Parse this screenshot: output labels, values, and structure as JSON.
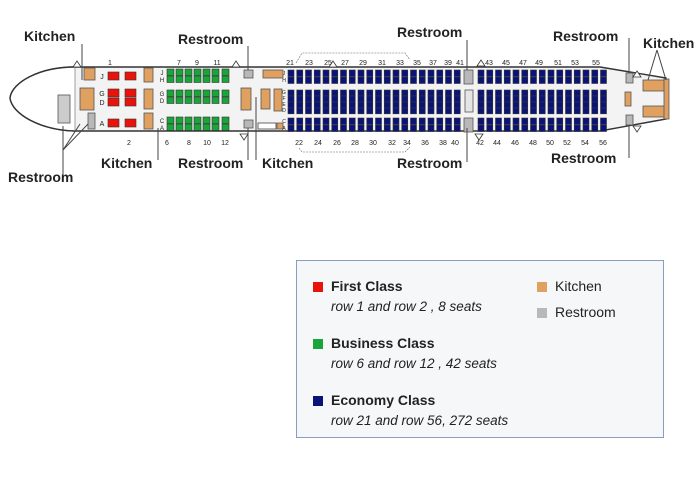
{
  "colors": {
    "first": "#e8140c",
    "business": "#1aa53a",
    "economy": "#0a1478",
    "kitchen": "#e0a060",
    "restroom": "#b8b8b8"
  },
  "callouts": {
    "top": [
      "Kitchen",
      "Restroom",
      "Restroom",
      "Restroom",
      "Kitchen"
    ],
    "bottom": [
      "Restroom",
      "Kitchen",
      "Restroom",
      "Kitchen",
      "Restroom",
      "Restroom"
    ]
  },
  "row_numbers": {
    "top": [
      "1",
      "7",
      "9",
      "11",
      "21",
      "23",
      "25",
      "27",
      "29",
      "31",
      "33",
      "35",
      "37",
      "39",
      "41",
      "43",
      "45",
      "47",
      "49",
      "51",
      "53",
      "55"
    ],
    "bottom": [
      "2",
      "6",
      "8",
      "10",
      "12",
      "22",
      "24",
      "26",
      "28",
      "30",
      "32",
      "34",
      "36",
      "38",
      "40",
      "42",
      "44",
      "46",
      "48",
      "50",
      "52",
      "54",
      "56"
    ]
  },
  "seat_letters": {
    "first": [
      "J",
      "G",
      "D",
      "A"
    ],
    "business": [
      "J",
      "H",
      "G",
      "D",
      "C",
      "A"
    ],
    "economy": [
      "J",
      "H",
      "G",
      "F",
      "E",
      "D",
      "C",
      "A"
    ]
  },
  "legend": {
    "items": [
      {
        "title": "First Class",
        "desc": "row 1 and  row 2 , 8 seats",
        "color": "first"
      },
      {
        "title": "Business Class",
        "desc": "row 6 and  row 12 , 42 seats",
        "color": "business"
      },
      {
        "title": "Economy Class",
        "desc": "row 21 and row 56, 272 seats",
        "color": "economy"
      },
      {
        "title": "Kitchen",
        "color": "kitchen"
      },
      {
        "title": "Restroom",
        "color": "restroom"
      }
    ]
  }
}
